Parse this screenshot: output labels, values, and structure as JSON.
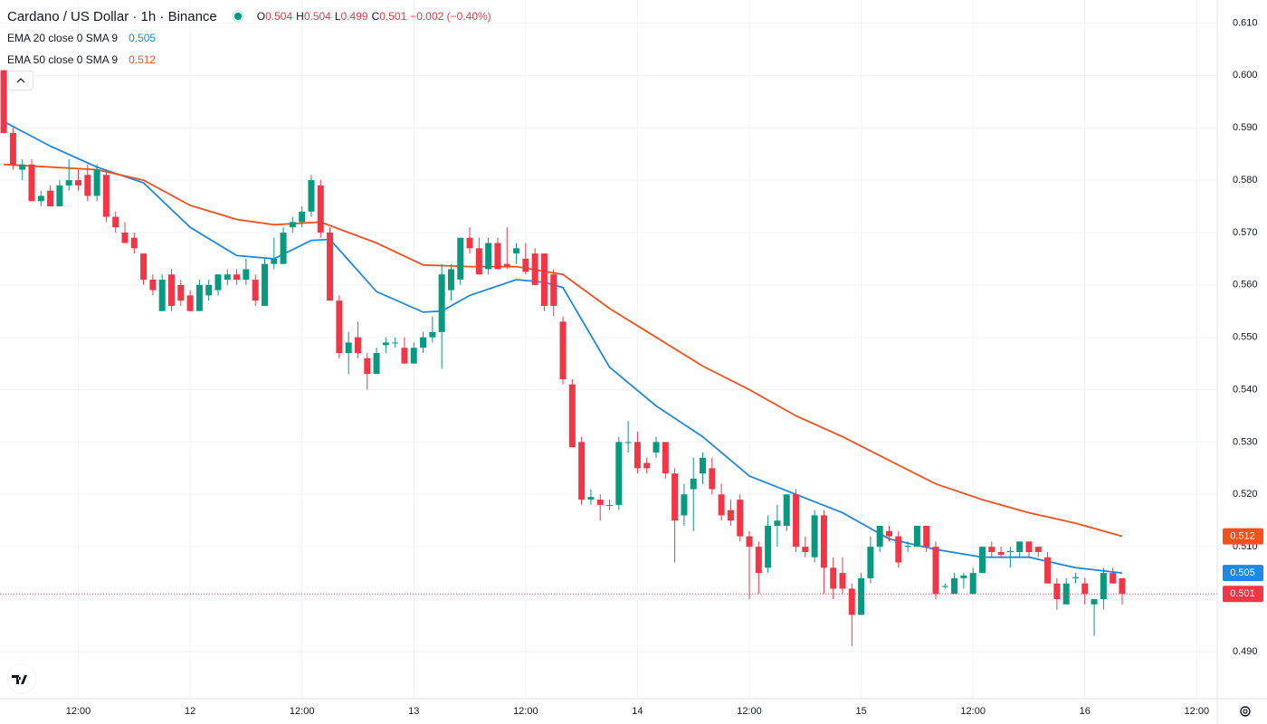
{
  "chart_data": {
    "type": "candlestick",
    "title": "Cardano / US Dollar · 1h · Binance",
    "ohlc_labels": [
      "O",
      "H",
      "L",
      "C"
    ],
    "change_label": "−0.002 (−0.40%)",
    "series": [
      {
        "name": "Cardano / US Dollar",
        "type": "candlestick",
        "up_color": "#089981",
        "down_color": "#f23645",
        "open": [
          0.601,
          0.589,
          0.582,
          0.583,
          0.576,
          0.578,
          0.575,
          0.579,
          0.58,
          0.581,
          0.577,
          0.581,
          0.573,
          0.57,
          0.569,
          0.566,
          0.561,
          0.555,
          0.562,
          0.56,
          0.558,
          0.555,
          0.558,
          0.559,
          0.561,
          0.562,
          0.561,
          0.561,
          0.556,
          0.564,
          0.564,
          0.571,
          0.572,
          0.574,
          0.579,
          0.57,
          0.557,
          0.547,
          0.55,
          0.546,
          0.543,
          0.5485,
          0.549,
          0.548,
          0.545,
          0.548,
          0.55,
          0.551,
          0.559,
          0.561,
          0.569,
          0.567,
          0.563,
          0.568,
          0.564,
          0.566,
          0.565,
          0.566,
          0.566,
          0.562,
          0.553,
          0.541,
          0.53,
          0.519,
          0.519,
          0.518,
          0.518,
          0.53,
          0.53,
          0.526,
          0.528,
          0.53,
          0.524,
          0.516,
          0.521,
          0.524,
          0.525,
          0.52,
          0.517,
          0.519,
          0.512,
          0.51,
          0.506,
          0.514,
          0.514,
          0.52,
          0.51,
          0.508,
          0.516,
          0.506,
          0.505,
          0.502,
          0.497,
          0.504,
          0.51,
          0.513,
          0.512,
          0.51,
          0.51,
          0.514,
          0.51,
          0.5025,
          0.501,
          0.504,
          0.501,
          0.505,
          0.51,
          0.509,
          0.509,
          0.509,
          0.511,
          0.51,
          0.508,
          0.503,
          0.499,
          0.504,
          0.503,
          0.499,
          0.5,
          0.505,
          0.504
        ],
        "high": [
          0.601,
          0.59,
          0.584,
          0.584,
          0.578,
          0.579,
          0.58,
          0.584,
          0.582,
          0.583,
          0.583,
          0.582,
          0.574,
          0.572,
          0.57,
          0.566,
          0.562,
          0.562,
          0.563,
          0.561,
          0.559,
          0.561,
          0.561,
          0.562,
          0.563,
          0.563,
          0.565,
          0.562,
          0.565,
          0.569,
          0.571,
          0.573,
          0.575,
          0.581,
          0.58,
          0.571,
          0.558,
          0.551,
          0.553,
          0.547,
          0.548,
          0.55,
          0.55,
          0.55,
          0.549,
          0.551,
          0.554,
          0.564,
          0.564,
          0.569,
          0.571,
          0.569,
          0.569,
          0.569,
          0.571,
          0.568,
          0.568,
          0.567,
          0.566,
          0.563,
          0.554,
          0.542,
          0.531,
          0.521,
          0.52,
          0.519,
          0.531,
          0.534,
          0.532,
          0.527,
          0.531,
          0.53,
          0.525,
          0.522,
          0.527,
          0.528,
          0.527,
          0.522,
          0.519,
          0.52,
          0.513,
          0.511,
          0.516,
          0.518,
          0.52,
          0.521,
          0.512,
          0.517,
          0.517,
          0.508,
          0.508,
          0.503,
          0.505,
          0.512,
          0.514,
          0.514,
          0.513,
          0.511,
          0.514,
          0.514,
          0.511,
          0.503,
          0.505,
          0.505,
          0.506,
          0.51,
          0.511,
          0.51,
          0.51,
          0.511,
          0.511,
          0.51,
          0.509,
          0.504,
          0.504,
          0.505,
          0.504,
          0.5,
          0.506,
          0.506,
          0.504
        ],
        "low": [
          0.589,
          0.582,
          0.58,
          0.576,
          0.575,
          0.575,
          0.575,
          0.578,
          0.578,
          0.576,
          0.576,
          0.572,
          0.57,
          0.568,
          0.566,
          0.56,
          0.558,
          0.555,
          0.555,
          0.556,
          0.555,
          0.555,
          0.557,
          0.558,
          0.56,
          0.56,
          0.56,
          0.556,
          0.556,
          0.563,
          0.564,
          0.57,
          0.571,
          0.573,
          0.569,
          0.557,
          0.546,
          0.543,
          0.546,
          0.54,
          0.543,
          0.547,
          0.548,
          0.545,
          0.545,
          0.547,
          0.549,
          0.544,
          0.557,
          0.56,
          0.566,
          0.562,
          0.562,
          0.563,
          0.563,
          0.564,
          0.562,
          0.56,
          0.555,
          0.554,
          0.541,
          0.529,
          0.518,
          0.518,
          0.515,
          0.517,
          0.517,
          0.528,
          0.524,
          0.524,
          0.527,
          0.523,
          0.507,
          0.514,
          0.513,
          0.522,
          0.52,
          0.515,
          0.514,
          0.511,
          0.5,
          0.501,
          0.505,
          0.51,
          0.513,
          0.509,
          0.508,
          0.507,
          0.501,
          0.5,
          0.501,
          0.491,
          0.497,
          0.503,
          0.509,
          0.511,
          0.506,
          0.509,
          0.51,
          0.509,
          0.5,
          0.502,
          0.501,
          0.502,
          0.501,
          0.505,
          0.508,
          0.508,
          0.506,
          0.508,
          0.508,
          0.508,
          0.503,
          0.498,
          0.499,
          0.503,
          0.499,
          0.493,
          0.498,
          0.503,
          0.499
        ],
        "close": [
          0.589,
          0.583,
          0.583,
          0.576,
          0.577,
          0.575,
          0.579,
          0.58,
          0.579,
          0.577,
          0.582,
          0.573,
          0.571,
          0.568,
          0.567,
          0.561,
          0.559,
          0.561,
          0.556,
          0.557,
          0.555,
          0.56,
          0.56,
          0.562,
          0.562,
          0.561,
          0.563,
          0.557,
          0.564,
          0.565,
          0.57,
          0.572,
          0.574,
          0.58,
          0.57,
          0.557,
          0.547,
          0.549,
          0.547,
          0.543,
          0.547,
          0.549,
          0.549,
          0.545,
          0.548,
          0.55,
          0.551,
          0.562,
          0.563,
          0.569,
          0.567,
          0.562,
          0.568,
          0.563,
          0.5635,
          0.567,
          0.5625,
          0.56,
          0.556,
          0.556,
          0.542,
          0.529,
          0.519,
          0.5195,
          0.518,
          0.518,
          0.53,
          0.53,
          0.525,
          0.525,
          0.53,
          0.524,
          0.515,
          0.52,
          0.523,
          0.527,
          0.521,
          0.516,
          0.515,
          0.512,
          0.51,
          0.505,
          0.514,
          0.515,
          0.52,
          0.51,
          0.509,
          0.516,
          0.506,
          0.502,
          0.502,
          0.497,
          0.504,
          0.51,
          0.514,
          0.512,
          0.507,
          0.5102,
          0.514,
          0.51,
          0.501,
          0.5025,
          0.504,
          0.5045,
          0.505,
          0.51,
          0.509,
          0.5085,
          0.5092,
          0.511,
          0.509,
          0.509,
          0.503,
          0.5,
          0.503,
          0.5042,
          0.501,
          0.5,
          0.505,
          0.503,
          0.501
        ]
      },
      {
        "name": "EMA 20 close 0 SMA 9",
        "type": "line",
        "color": "#1e88e5",
        "x": [
          0,
          5,
          10,
          15,
          20,
          25,
          29,
          33,
          35,
          40,
          45,
          47,
          50,
          55,
          58,
          60,
          65,
          70,
          75,
          80,
          85,
          90,
          95,
          100,
          105,
          110,
          115,
          120
        ],
        "values": [
          0.5912,
          0.5865,
          0.5825,
          0.5795,
          0.571,
          0.5656,
          0.565,
          0.5685,
          0.5687,
          0.5587,
          0.5548,
          0.555,
          0.558,
          0.561,
          0.5605,
          0.5595,
          0.5443,
          0.5369,
          0.531,
          0.5235,
          0.52,
          0.5165,
          0.5115,
          0.5095,
          0.508,
          0.508,
          0.506,
          0.505
        ]
      },
      {
        "name": "EMA 50 close 0 SMA 9",
        "type": "line",
        "color": "#f4511e",
        "x": [
          0,
          10,
          15,
          20,
          25,
          29,
          34,
          40,
          45,
          50,
          55,
          60,
          65,
          70,
          75,
          80,
          85,
          90,
          95,
          100,
          105,
          110,
          115,
          120
        ],
        "values": [
          0.583,
          0.582,
          0.58,
          0.5752,
          0.5725,
          0.5715,
          0.572,
          0.568,
          0.5638,
          0.5635,
          0.5635,
          0.562,
          0.5555,
          0.55,
          0.5445,
          0.54,
          0.535,
          0.531,
          0.5265,
          0.522,
          0.519,
          0.5165,
          0.5145,
          0.512
        ]
      }
    ],
    "xlim": [
      -0.4,
      130.2
    ],
    "xticks": [
      {
        "value": 8,
        "label": "12:00"
      },
      {
        "value": 20,
        "label": "12"
      },
      {
        "value": 32,
        "label": "12:00"
      },
      {
        "value": 44,
        "label": "13"
      },
      {
        "value": 56,
        "label": "12:00"
      },
      {
        "value": 68,
        "label": "14"
      },
      {
        "value": 80,
        "label": "12:00"
      },
      {
        "value": 92,
        "label": "15"
      },
      {
        "value": 104,
        "label": "12:00"
      },
      {
        "value": 116,
        "label": "16"
      },
      {
        "value": 128,
        "label": "12:00"
      }
    ],
    "ylim": [
      0.481,
      0.6144
    ],
    "yticks": [
      {
        "value": 0.49,
        "label": "0.490"
      },
      {
        "value": 0.5,
        "label": "0.500"
      },
      {
        "value": 0.51,
        "label": "0.510"
      },
      {
        "value": 0.52,
        "label": "0.520"
      },
      {
        "value": 0.53,
        "label": "0.530"
      },
      {
        "value": 0.54,
        "label": "0.540"
      },
      {
        "value": 0.55,
        "label": "0.550"
      },
      {
        "value": 0.56,
        "label": "0.560"
      },
      {
        "value": 0.57,
        "label": "0.570"
      },
      {
        "value": 0.58,
        "label": "0.580"
      },
      {
        "value": 0.59,
        "label": "0.590"
      },
      {
        "value": 0.6,
        "label": "0.600"
      },
      {
        "value": 0.61,
        "label": "0.610"
      }
    ],
    "grid": true
  }
}
